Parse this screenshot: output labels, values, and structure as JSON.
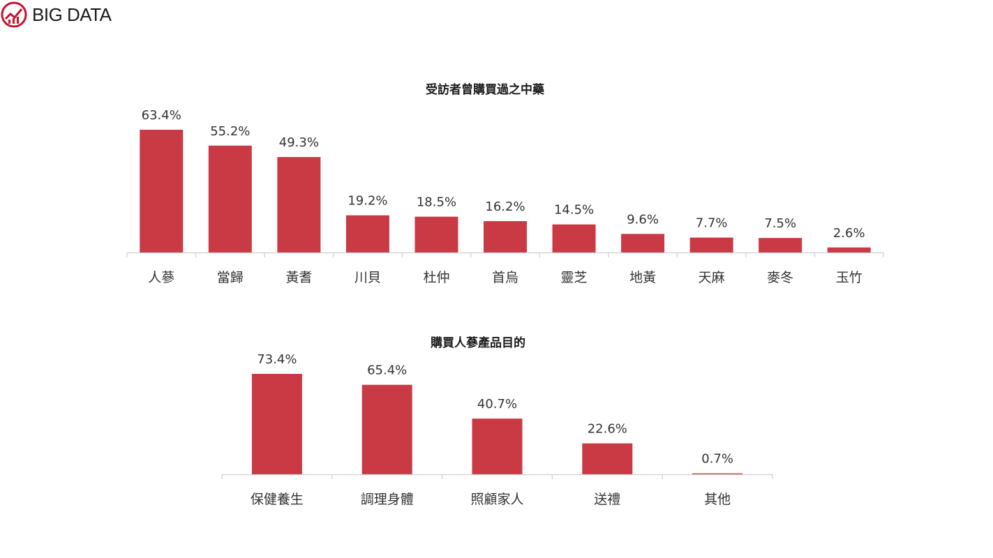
{
  "brand": {
    "logo_text": "BIG DATA",
    "logo_color": "#c8102e"
  },
  "chart_data": [
    {
      "type": "bar",
      "title": "受訪者曾購買過之中藥",
      "categories": [
        "人蔘",
        "當歸",
        "黃耆",
        "川貝",
        "杜仲",
        "首烏",
        "靈芝",
        "地黃",
        "天麻",
        "麥冬",
        "玉竹"
      ],
      "values": [
        63.4,
        55.2,
        49.3,
        19.2,
        18.5,
        16.2,
        14.5,
        9.6,
        7.7,
        7.5,
        2.6
      ],
      "value_labels": [
        "63.4%",
        "55.2%",
        "49.3%",
        "19.2%",
        "18.5%",
        "16.2%",
        "14.5%",
        "9.6%",
        "7.7%",
        "7.5%",
        "2.6%"
      ],
      "unit": "%",
      "bar_color": "#c93a45",
      "grid": false,
      "legend": "none"
    },
    {
      "type": "bar",
      "title": "購買人蔘產品目的",
      "categories": [
        "保健養生",
        "調理身體",
        "照顧家人",
        "送禮",
        "其他"
      ],
      "values": [
        73.4,
        65.4,
        40.7,
        22.6,
        0.7
      ],
      "value_labels": [
        "73.4%",
        "65.4%",
        "40.7%",
        "22.6%",
        "0.7%"
      ],
      "unit": "%",
      "bar_color": "#c93a45",
      "grid": false,
      "legend": "none"
    }
  ]
}
